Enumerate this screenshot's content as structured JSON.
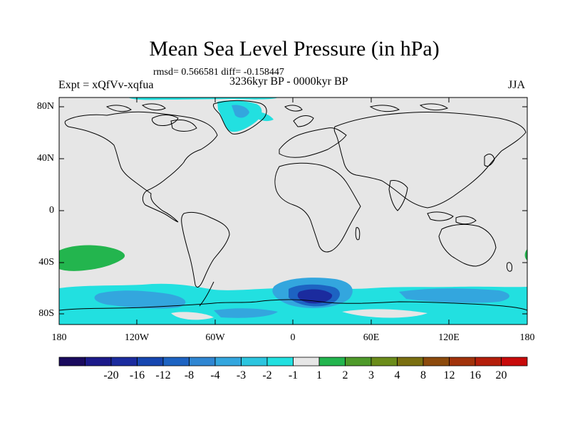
{
  "title": "Mean Sea Level Pressure (in hPa)",
  "stats_text": "rmsd= 0.566581 diff= -0.158447",
  "experiment_label": "Expt = xQfVv-xqfua",
  "period_label": "3236kyr BP - 0000kyr BP",
  "season_label": "JJA",
  "lat_ticks": [
    "80N",
    "40N",
    "0",
    "40S",
    "80S"
  ],
  "lon_ticks": [
    "180",
    "120W",
    "60W",
    "0",
    "60E",
    "120E",
    "180"
  ],
  "colorbar": {
    "colors": [
      "#1a0a5e",
      "#1c1a8a",
      "#1b2b9e",
      "#1646b0",
      "#1d63c2",
      "#2f86d2",
      "#33a6de",
      "#2cc5df",
      "#22e0e0",
      "#e6e6e6",
      "#23b54e",
      "#4e9a2a",
      "#6b8c1a",
      "#7a6f10",
      "#8c4a0c",
      "#a1320a",
      "#b41e0a",
      "#c80a0a"
    ],
    "labels": [
      "-20",
      "-16",
      "-12",
      "-8",
      "-4",
      "-3",
      "-2",
      "-1",
      "1",
      "2",
      "3",
      "4",
      "8",
      "12",
      "16",
      "20"
    ]
  },
  "colors": {
    "land_bg": "#e6e6e6",
    "cyan": "#22e0e0",
    "light_blue": "#33a6de",
    "mid_blue": "#1d63c2",
    "deep_blue": "#1b2b9e",
    "green": "#23b54e"
  }
}
